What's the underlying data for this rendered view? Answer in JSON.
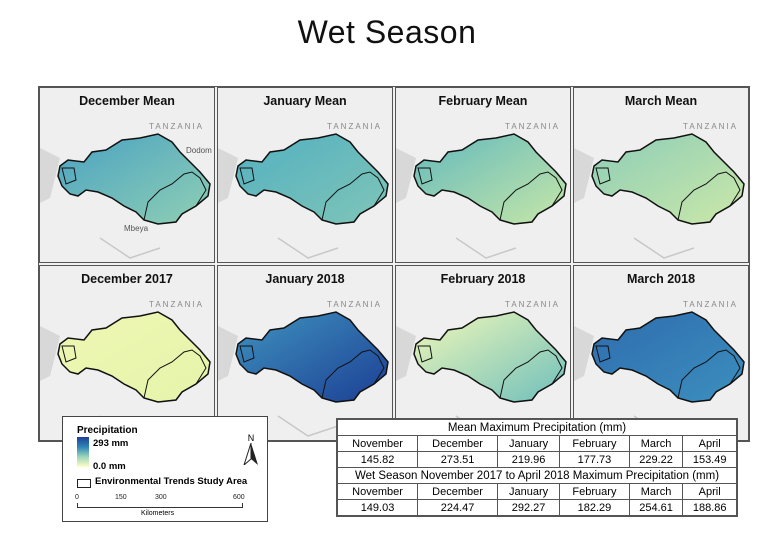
{
  "title": "Wet Season",
  "panels": [
    {
      "label": "December Mean",
      "tz": "TANZANIA",
      "fill": "#4aa2c2",
      "fill2": "#8fcfb4"
    },
    {
      "label": "January Mean",
      "tz": "TANZANIA",
      "fill": "#53b0c0",
      "fill2": "#7fc5b8"
    },
    {
      "label": "February Mean",
      "tz": "TANZANIA",
      "fill": "#63b9bd",
      "fill2": "#c6e7a8"
    },
    {
      "label": "March Mean",
      "tz": "TANZANIA",
      "fill": "#8dcdb8",
      "fill2": "#cbe8a8"
    },
    {
      "label": "December 2017",
      "tz": "TANZANIA",
      "fill": "#eef7b2",
      "fill2": "#e6f4ab"
    },
    {
      "label": "January 2018",
      "tz": "TANZANIA",
      "fill": "#3f93bf",
      "fill2": "#1c3f94"
    },
    {
      "label": "February 2018",
      "tz": "TANZANIA",
      "fill": "#f1f8b8",
      "fill2": "#6fbfbc"
    },
    {
      "label": "March 2018",
      "tz": "TANZANIA",
      "fill": "#2e6cae",
      "fill2": "#3c8fbe"
    }
  ],
  "towns": {
    "dodoma": "Dodom",
    "mbeya": "Mbeya"
  },
  "legend": {
    "title": "Precipitation",
    "high": "293 mm",
    "low": "0.0 mm",
    "boundary": "Environmental Trends Study Area",
    "north": "N",
    "scale": [
      "0",
      "150",
      "300",
      "600"
    ],
    "units": "Kilometers"
  },
  "table1": {
    "caption": "Mean Maximum Precipitation (mm)",
    "headers": [
      "November",
      "December",
      "January",
      "February",
      "March",
      "April"
    ],
    "values": [
      "145.82",
      "273.51",
      "219.96",
      "177.73",
      "229.22",
      "153.49"
    ]
  },
  "table2": {
    "caption": "Wet Season November 2017 to April 2018 Maximum Precipitation (mm)",
    "headers": [
      "November",
      "December",
      "January",
      "February",
      "March",
      "April"
    ],
    "values": [
      "149.03",
      "224.47",
      "292.27",
      "182.29",
      "254.61",
      "188.86"
    ]
  }
}
